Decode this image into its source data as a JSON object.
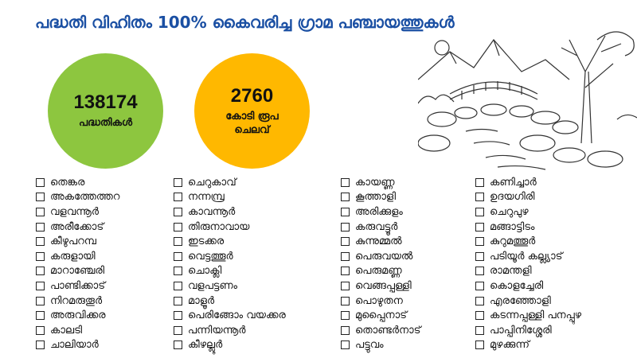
{
  "title": "പദ്ധതി വിഹിതം 100% കൈവരിച്ച ഗ്രാമ പഞ്ചായത്തുകൾ",
  "stats": [
    {
      "value": "138174",
      "label": "പദ്ധതികൾ",
      "color": "#8dc63f"
    },
    {
      "value": "2760",
      "label": "കോടി രൂപ ചെലവ്",
      "color": "#ffb800"
    }
  ],
  "title_color": "#1a4fa3",
  "columns": [
    [
      "തെങ്കര",
      "അകത്തേത്തറ",
      "വളവന്നൂർ",
      "അരീക്കോട്",
      "കീഴുപറമ്പ",
      "കരുളായി",
      "മാറാഞ്ചേരി",
      "പാണ്ടിക്കാട്",
      "നിറമരുതൂർ",
      "അരുവിക്കര",
      "കാലടി",
      "ചാലിയാർ"
    ],
    [
      "ചെറുകാവ്",
      "നന്നമ്പ്ര",
      "കാവന്നൂർ",
      "തിരുനാവായ",
      "ഇടക്കര",
      "വെട്ടത്തൂർ",
      "ചൊക്ലി",
      "വളപട്ടണം",
      "മാളൂർ",
      "പെരിങ്ങോം വയക്കര",
      "പന്നിയന്നൂർ",
      "കീഴല്ലൂർ"
    ],
    [
      "കായണ്ണ",
      "കൂത്താളി",
      "അരിക്കുളം",
      "കരുവട്ടൂർ",
      "കുന്നുമ്മൽ",
      "പെരുവയൽ",
      "പെരുമണ്ണ",
      "വെങ്ങപ്പള്ളി",
      "പൊഴുതന",
      "മുപ്പൈനാട്",
      "തൊണ്ടർനാട്",
      "പട്ടുവം"
    ],
    [
      "കണിച്ചാർ",
      "ഉദയഗിരി",
      "ചെറുപുഴ",
      "മങ്ങാട്ടിടം",
      "കുറുമത്തൂർ",
      "പടിയൂർ കല്ല്യാട്",
      "രാമന്തളി",
      "കൊളച്ചേരി",
      "എരഞ്ഞോളി",
      "കടന്നപ്പള്ളി പനപ്പുഴ",
      "പാപ്പിനിശ്ശേരി",
      "മുഴക്കുന്ന്"
    ]
  ]
}
